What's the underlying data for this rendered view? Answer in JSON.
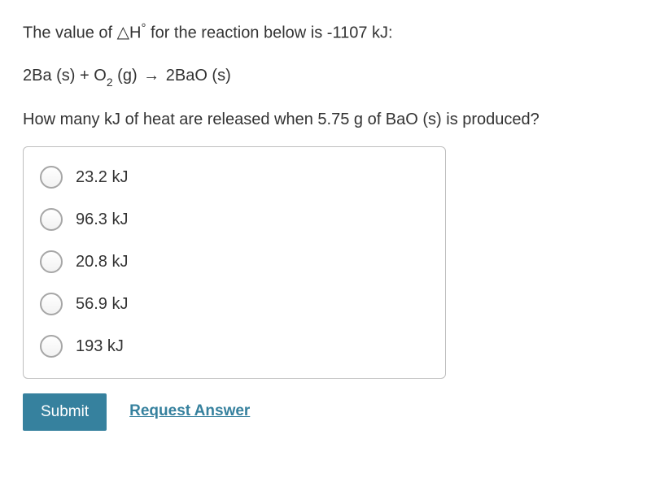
{
  "question": {
    "intro_before_delta": "The value of ",
    "delta_symbol": "△",
    "delta_H": "H",
    "degree": "°",
    "intro_after_delta": " for the reaction below is -1107 kJ:",
    "equation_full": "2Ba (s) + O₂ (g) → 2BaO (s)",
    "eq_parts": {
      "p1": "2Ba (s) + O",
      "sub2": "2",
      "p2": " (g) ",
      "arrow": "→",
      "p3": " 2BaO (s)"
    },
    "followup": "How many kJ of heat are released when 5.75 g of BaO (s) is produced?"
  },
  "options": [
    {
      "label": "23.2 kJ"
    },
    {
      "label": "96.3 kJ"
    },
    {
      "label": "20.8 kJ"
    },
    {
      "label": "56.9 kJ"
    },
    {
      "label": "193 kJ"
    }
  ],
  "actions": {
    "submit": "Submit",
    "request": "Request Answer"
  },
  "colors": {
    "text": "#333333",
    "border": "#bfbfbf",
    "radio_border": "#a6a6a6",
    "primary": "#36819e",
    "background": "#ffffff"
  }
}
